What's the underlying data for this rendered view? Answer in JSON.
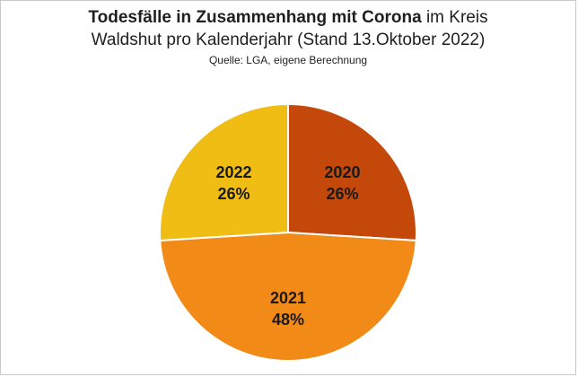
{
  "title": {
    "bold_part": "Todesfälle in Zusammenhang mit Corona",
    "rest_part": " im Kreis",
    "line2": "Waldshut pro Kalenderjahr (Stand 13.Oktober 2022)",
    "source": "Quelle: LGA,  eigene Berechnung"
  },
  "chart_data": {
    "type": "pie",
    "title": "Todesfälle in Zusammenhang mit Corona im Kreis Waldshut pro Kalenderjahr (Stand 13.Oktober 2022)",
    "subtitle": "Quelle: LGA,  eigene Berechnung",
    "categories": [
      "2020",
      "2021",
      "2022"
    ],
    "values": [
      26,
      48,
      26
    ],
    "labels": [
      "26%",
      "48%",
      "26%"
    ],
    "colors": [
      "#c5480b",
      "#f28a17",
      "#f0bd14"
    ],
    "start": "12 o'clock, clockwise",
    "legend": "none"
  }
}
